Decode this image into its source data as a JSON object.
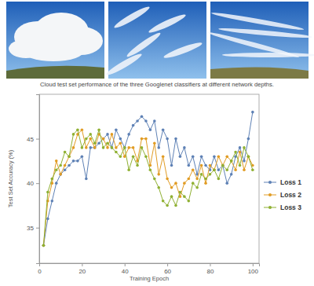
{
  "chart_data": {
    "type": "line",
    "title": "Cloud test set performance of the three Googlenet classifiers at different network depths.",
    "x_label": "Training Epoch",
    "y_label": "Test Set Accuracy (%)",
    "x": [
      2,
      4,
      6,
      8,
      10,
      12,
      14,
      16,
      18,
      20,
      22,
      24,
      26,
      28,
      30,
      32,
      34,
      36,
      38,
      40,
      42,
      44,
      46,
      48,
      50,
      52,
      54,
      56,
      58,
      60,
      62,
      64,
      66,
      68,
      70,
      72,
      74,
      76,
      78,
      80,
      82,
      84,
      86,
      88,
      90,
      92,
      94,
      96,
      98,
      100
    ],
    "series": [
      {
        "name": "Loss 1",
        "color": "#5e81b5",
        "values": [
          33,
          36,
          38,
          40,
          41,
          41.5,
          42,
          42.5,
          42.5,
          43,
          40.5,
          44,
          44,
          44.5,
          45,
          45.5,
          44,
          46,
          45,
          44,
          45.5,
          46.5,
          47,
          47.5,
          47,
          46,
          47,
          44,
          46,
          45,
          42,
          45,
          43,
          44,
          42,
          43,
          41,
          43,
          42,
          41.5,
          43,
          41.5,
          42,
          40,
          41,
          43,
          44,
          42.5,
          45,
          48
        ]
      },
      {
        "name": "Loss 2",
        "color": "#e19c24",
        "values": [
          33,
          38,
          40,
          42.5,
          41,
          42,
          43,
          44,
          45.5,
          46,
          44,
          45,
          44,
          45.5,
          45,
          44,
          45.5,
          44,
          44.5,
          43,
          44,
          44,
          42.5,
          45,
          45,
          42,
          44.5,
          41,
          43,
          40.5,
          39.5,
          40,
          38.5,
          40,
          40.5,
          41.5,
          40.5,
          42,
          40,
          42,
          41.5,
          43,
          42,
          43,
          42.5,
          41.5,
          43.5,
          41.5,
          43,
          42
        ]
      },
      {
        "name": "Loss 3",
        "color": "#8fb032",
        "values": [
          33,
          39,
          40.5,
          41.5,
          42,
          43.5,
          43,
          45.5,
          46,
          44,
          45,
          45.5,
          44.5,
          46,
          44,
          44.5,
          44,
          43.5,
          43,
          44,
          41.5,
          43,
          42,
          44,
          43,
          41.5,
          40.5,
          39.5,
          38,
          37.5,
          38.5,
          37.5,
          39,
          38.5,
          38,
          40,
          39.5,
          41,
          40.5,
          41,
          41.5,
          40.5,
          42,
          41.5,
          42.5,
          43.5,
          42,
          44,
          43,
          41.5
        ]
      }
    ],
    "xlim": [
      0,
      103
    ],
    "ylim": [
      31,
      50
    ],
    "xticks": [
      0,
      20,
      40,
      60,
      80,
      100
    ],
    "yticks": [
      35,
      40,
      45
    ],
    "grid": false,
    "legend": "right",
    "marker": "circle"
  }
}
